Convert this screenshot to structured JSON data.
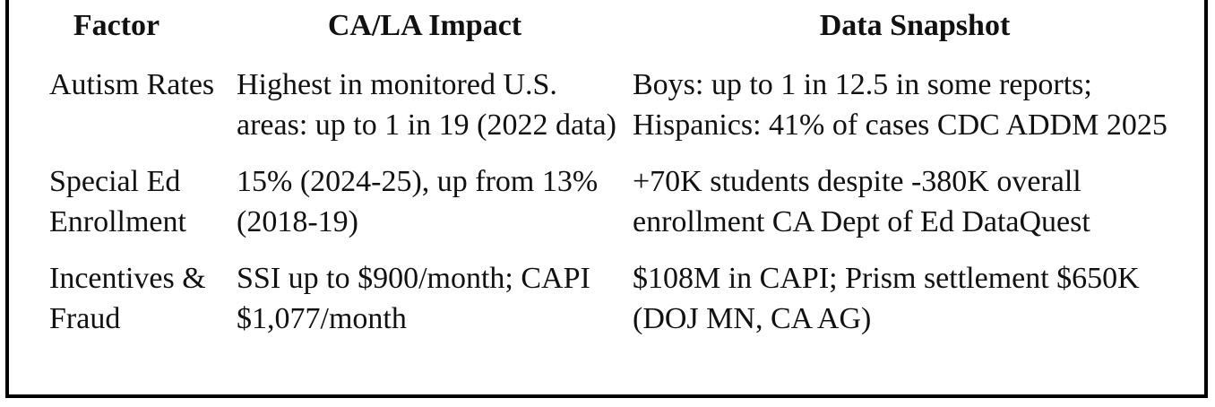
{
  "headers": {
    "factor": "Factor",
    "impact": "CA/LA Impact",
    "snapshot": "Data Snapshot"
  },
  "rows": [
    {
      "factor": "Autism Rates",
      "impact": "Highest in monitored U.S. areas: up to 1 in 19 (2022 data)",
      "snapshot": "Boys: up to 1 in 12.5 in some reports; Hispanics: 41% of cases CDC ADDM 2025"
    },
    {
      "factor": "Special Ed Enrollment",
      "impact": "15% (2024-25), up from 13% (2018-19)",
      "snapshot": "+70K students despite -380K overall enrollment CA Dept of Ed DataQuest"
    },
    {
      "factor": "Incentives & Fraud",
      "impact": "SSI up to $900/month; CAPI $1,077/month",
      "snapshot": "$108M in CAPI; Prism settlement $650K (DOJ MN, CA AG)"
    }
  ]
}
